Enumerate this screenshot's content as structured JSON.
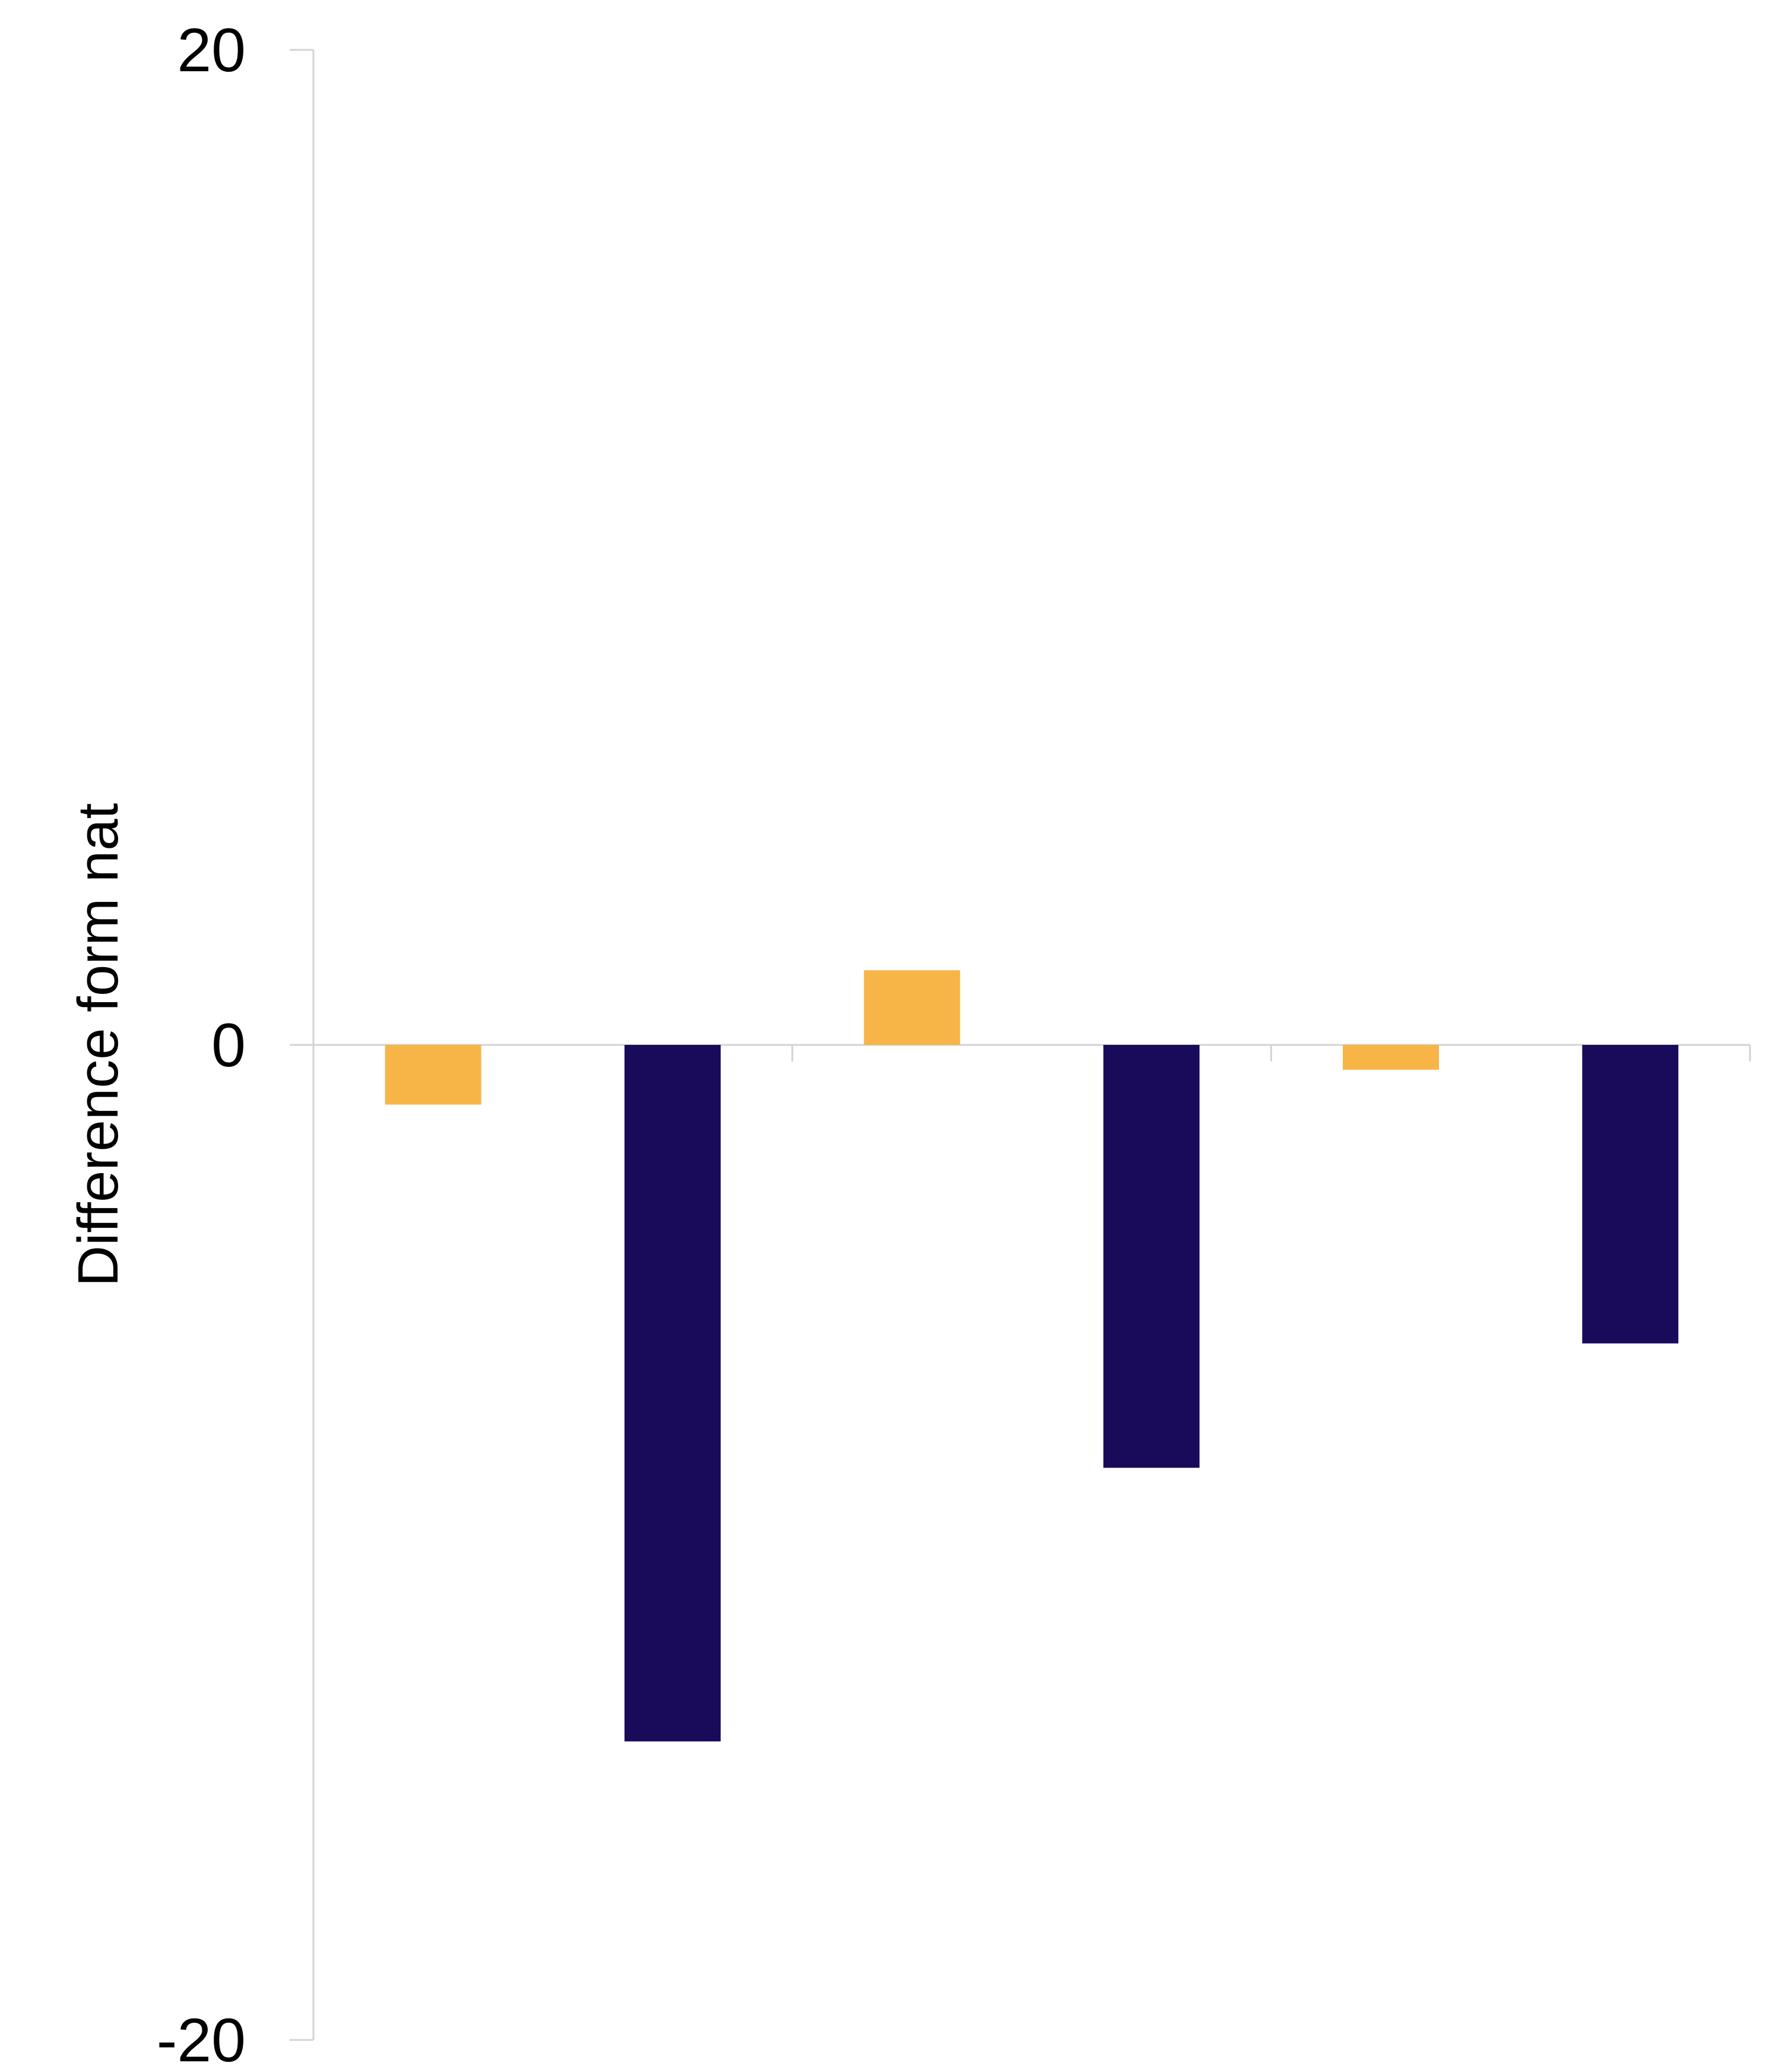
{
  "chart_data": {
    "type": "bar",
    "title": "",
    "xlabel": "",
    "ylabel": "Difference form nat",
    "ylim": [
      -20,
      20
    ],
    "yticks": [
      "20",
      "0",
      "-20"
    ],
    "grid": false,
    "legend": "none",
    "category_groups": 3,
    "series": [
      {
        "values": [
          -1.2,
          1.5,
          -0.5
        ],
        "color": "#f7b548"
      },
      {
        "values": [
          -14.0,
          -8.5,
          -6.0
        ],
        "color": "#190b5a"
      }
    ]
  },
  "colors": {
    "axis": "#d3d3d3",
    "text": "#000000"
  }
}
